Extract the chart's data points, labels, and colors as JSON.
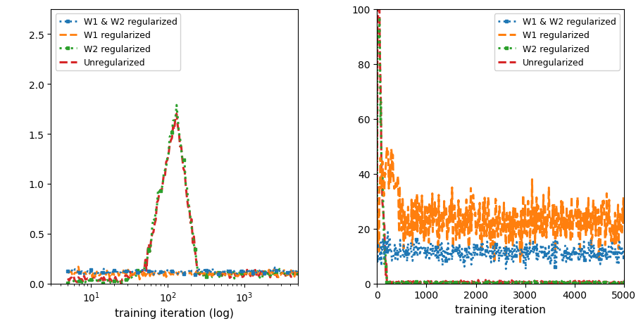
{
  "left_xlim": [
    3,
    5000
  ],
  "left_ylim": [
    0,
    2.75
  ],
  "right_xlim": [
    0,
    5000
  ],
  "right_ylim": [
    0,
    100
  ],
  "left_xlabel": "training iteration (log)",
  "right_xlabel": "training iteration",
  "legend_labels": [
    "W1 & W2 regularized",
    "W1 regularized",
    "W2 regularized",
    "Unregularized"
  ],
  "colors": [
    "#1f77b4",
    "#ff7f0e",
    "#2ca02c",
    "#d62728"
  ],
  "seed": 42
}
